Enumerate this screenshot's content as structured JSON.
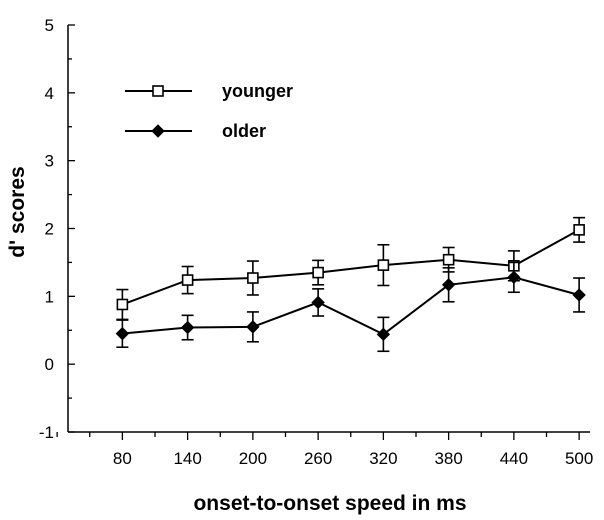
{
  "chart_data": {
    "type": "line",
    "title": "",
    "xlabel": "onset-to-onset speed in ms",
    "ylabel": "d' scores",
    "x": [
      80,
      140,
      200,
      260,
      320,
      380,
      440,
      500
    ],
    "xticks": [
      "80",
      "140",
      "200",
      "260",
      "320",
      "380",
      "440",
      "500"
    ],
    "ylim": [
      -1,
      5
    ],
    "yticks": [
      "-1",
      "0",
      "1",
      "2",
      "3",
      "4",
      "5"
    ],
    "grid": false,
    "legend_position": "top-left",
    "series": [
      {
        "name": "younger",
        "marker": "open-square",
        "values": [
          0.88,
          1.24,
          1.27,
          1.35,
          1.46,
          1.54,
          1.45,
          1.98
        ],
        "error": [
          0.22,
          0.2,
          0.25,
          0.18,
          0.3,
          0.18,
          0.22,
          0.18
        ]
      },
      {
        "name": "older",
        "marker": "filled-diamond",
        "values": [
          0.45,
          0.54,
          0.55,
          0.91,
          0.44,
          1.17,
          1.28,
          1.02
        ],
        "error": [
          0.2,
          0.18,
          0.22,
          0.2,
          0.25,
          0.25,
          0.22,
          0.25
        ]
      }
    ],
    "colors": {
      "line": "#000000",
      "background": "#ffffff"
    }
  }
}
